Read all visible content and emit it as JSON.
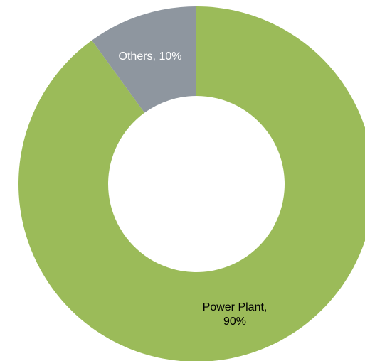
{
  "chart_data": {
    "type": "donut",
    "title": "",
    "series": [
      {
        "slices": [
          {
            "label": "Power Plant",
            "value": 90,
            "value_text": "90%",
            "color": "#9bbb59",
            "label_color": "#000000",
            "label_lines": [
              "Power Plant,",
              "90%"
            ]
          },
          {
            "label": "Others",
            "value": 10,
            "value_text": "10%",
            "color": "#8e969f",
            "label_color": "#ffffff",
            "label_lines": [
              "Others, 10%"
            ]
          }
        ]
      }
    ],
    "start_angle": "12 o'clock",
    "direction": "clockwise",
    "legend": "none",
    "labels": "category and percentage on slices"
  }
}
